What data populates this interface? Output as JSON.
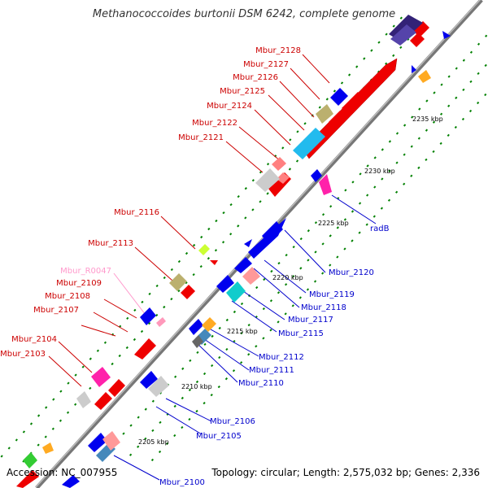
{
  "title": "Methanococcoides burtonii DSM 6242, complete genome",
  "footer": {
    "accession": "Accession: NC_007955",
    "topology": "Topology: circular; Length: 2,575,032 bp; Genes: 2,336"
  },
  "scale_labels": [
    "2205 kbp",
    "2210 kbp",
    "2215 kbp",
    "2220 kbp",
    "2225 kbp",
    "2230 kbp",
    "2235 kbp"
  ],
  "left_labels": [
    "Mbur_2128",
    "Mbur_2127",
    "Mbur_2126",
    "Mbur_2125",
    "Mbur_2124",
    "Mbur_2122",
    "Mbur_2121",
    "Mbur_2116",
    "Mbur_2113",
    "Mbur_R0047",
    "Mbur_2109",
    "Mbur_2108",
    "Mbur_2107",
    "Mbur_2104",
    "Mbur_2103"
  ],
  "right_labels": [
    "radB",
    "Mbur_2120",
    "Mbur_2119",
    "Mbur_2118",
    "Mbur_2117",
    "Mbur_2115",
    "Mbur_2112",
    "Mbur_2111",
    "Mbur_2110",
    "Mbur_2106",
    "Mbur_2105",
    "Mbur_2100"
  ],
  "colors": {
    "forward_gene": "#ff0000",
    "reverse_gene": "#0000ff",
    "rna_label": "#ff99cc",
    "backbone": "#888888",
    "tick": "#008000"
  }
}
